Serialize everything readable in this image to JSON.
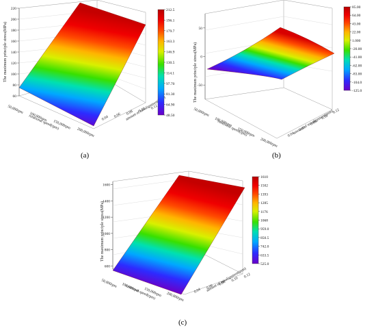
{
  "chart_data": [
    {
      "type": "surface",
      "panel_label": "(a)",
      "zlabel": "The maximum principle stress(MPa)",
      "xlabel": "rotational speed(rpm)",
      "ylabel": "amount of misalignment(mm)",
      "x_ticks": [
        "50,000rpm",
        "100,000rpm",
        "150,000rpm",
        "200,000rpm"
      ],
      "y_ticks": [
        "0.04",
        "0.06",
        "0.08",
        "0.10",
        "0.12"
      ],
      "z_ticks": [
        "60",
        "80",
        "100",
        "120",
        "140",
        "160",
        "180",
        "200",
        "220"
      ],
      "zlim": [
        60,
        220
      ],
      "colorbar_ticks": [
        "212.5",
        "196.1",
        "179.7",
        "163.3",
        "146.9",
        "130.5",
        "114.1",
        "97.70",
        "81.30",
        "64.90",
        "48.50"
      ],
      "corner_values": {
        "low_speed_low_mis": 72,
        "high_speed_low_mis": 48,
        "low_speed_high_mis": 218,
        "high_speed_high_mis": 212
      }
    },
    {
      "type": "surface",
      "panel_label": "(b)",
      "zlabel": "The maximum principle stress(MPa)",
      "xlabel": "rotational speed(rpm)",
      "ylabel": "amount of misalignment(mm)",
      "x_ticks": [
        "50,000rpm",
        "100,000rpm",
        "150,000rpm",
        "200,000rpm"
      ],
      "y_ticks": [
        "0.04",
        "0.06",
        "0.08",
        "0.10",
        "0.12"
      ],
      "z_ticks": [
        "-50",
        "0",
        "50"
      ],
      "zlim": [
        -75,
        75
      ],
      "colorbar_ticks": [
        "85.00",
        "64.00",
        "43.00",
        "22.00",
        "1.000",
        "-20.00",
        "-41.00",
        "-62.00",
        "-83.00",
        "-104.0",
        "-125.0"
      ]
    },
    {
      "type": "surface",
      "panel_label": "(c)",
      "zlabel": "The maximum principle stress(MPa)",
      "xlabel": "rotational speed(rpm)",
      "ylabel": "amount of misalignment(mm)",
      "x_ticks": [
        "50,000rpm",
        "100,000rpm",
        "150,000rpm",
        "200,000rpm"
      ],
      "y_ticks": [
        "0.04",
        "0.06",
        "0.08",
        "0.10",
        "0.12"
      ],
      "z_ticks": [
        "600",
        "800",
        "1000",
        "1200",
        "1400",
        "1600"
      ],
      "zlim": [
        560,
        1640
      ],
      "colorbar_ticks": [
        "1610",
        "1502",
        "1393",
        "1285",
        "1176",
        "1068",
        "959.0",
        "850.5",
        "742.0",
        "633.5",
        "525.0"
      ]
    }
  ]
}
